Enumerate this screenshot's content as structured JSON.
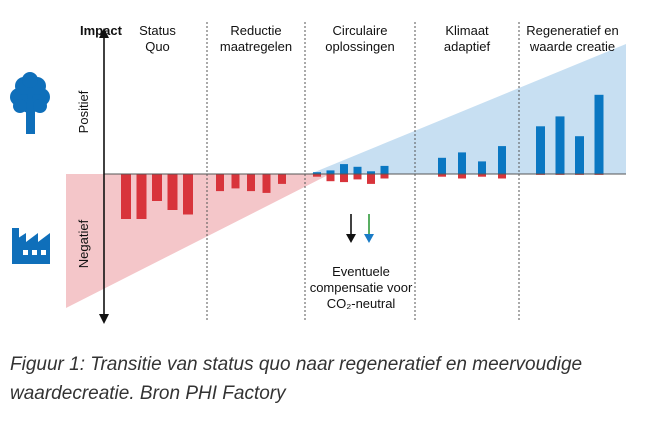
{
  "colors": {
    "positive_bar": "#0a77c2",
    "negative_bar": "#d8343b",
    "positive_area": "#c7dff2",
    "negative_area": "#f4c6c9",
    "icon": "#0f6fba",
    "green_arrow": "#2f9a3a",
    "blue_arrow": "#1a7bc6"
  },
  "icons": {
    "positive": "tree-icon",
    "negative": "factory-icon"
  },
  "labels": {
    "impact": "Impact",
    "positive": "Positief",
    "negative": "Negatief",
    "compensation": [
      "Eventuele",
      "compensatie voor",
      "CO₂-neutral"
    ]
  },
  "caption": {
    "line1": "Figuur 1: Transitie van status quo naar regeneratief en meervoudige",
    "line2": "waardecreatie. Bron PHI Factory"
  },
  "chart_data": {
    "type": "bar",
    "title": "",
    "ylabel": "Impact",
    "phases": [
      {
        "label": [
          "Status",
          "Quo"
        ],
        "bars": [
          {
            "pos": 0,
            "neg": 5
          },
          {
            "pos": 0,
            "neg": 5
          },
          {
            "pos": 0,
            "neg": 3
          },
          {
            "pos": 0,
            "neg": 4
          },
          {
            "pos": 0,
            "neg": 4.5
          }
        ]
      },
      {
        "label": [
          "Reductie",
          "maatregelen"
        ],
        "bars": [
          {
            "pos": 0,
            "neg": 1.9
          },
          {
            "pos": 0,
            "neg": 1.6
          },
          {
            "pos": 0,
            "neg": 1.9
          },
          {
            "pos": 0,
            "neg": 2.1
          },
          {
            "pos": 0,
            "neg": 1.1
          }
        ]
      },
      {
        "label": [
          "Circulaire",
          "oplossingen"
        ],
        "bars": [
          {
            "pos": 0.2,
            "neg": 0.3
          },
          {
            "pos": 0.4,
            "neg": 0.8
          },
          {
            "pos": 1.1,
            "neg": 0.9
          },
          {
            "pos": 0.8,
            "neg": 0.6
          },
          {
            "pos": 0.3,
            "neg": 1.1
          },
          {
            "pos": 0.9,
            "neg": 0.5
          }
        ]
      },
      {
        "label": [
          "Klimaat",
          "adaptief"
        ],
        "bars": [
          {
            "pos": 1.8,
            "neg": 0.3
          },
          {
            "pos": 2.4,
            "neg": 0.5
          },
          {
            "pos": 1.4,
            "neg": 0.3
          },
          {
            "pos": 3.1,
            "neg": 0.5
          }
        ]
      },
      {
        "label": [
          "Regeneratief en",
          "waarde creatie"
        ],
        "bars": [
          {
            "pos": 5.3,
            "neg": 0.1
          },
          {
            "pos": 6.4,
            "neg": 0.1
          },
          {
            "pos": 4.2,
            "neg": 0.1
          },
          {
            "pos": 8.8,
            "neg": 0.1
          }
        ]
      }
    ],
    "ylim": [
      -6,
      10
    ],
    "grid": false
  }
}
